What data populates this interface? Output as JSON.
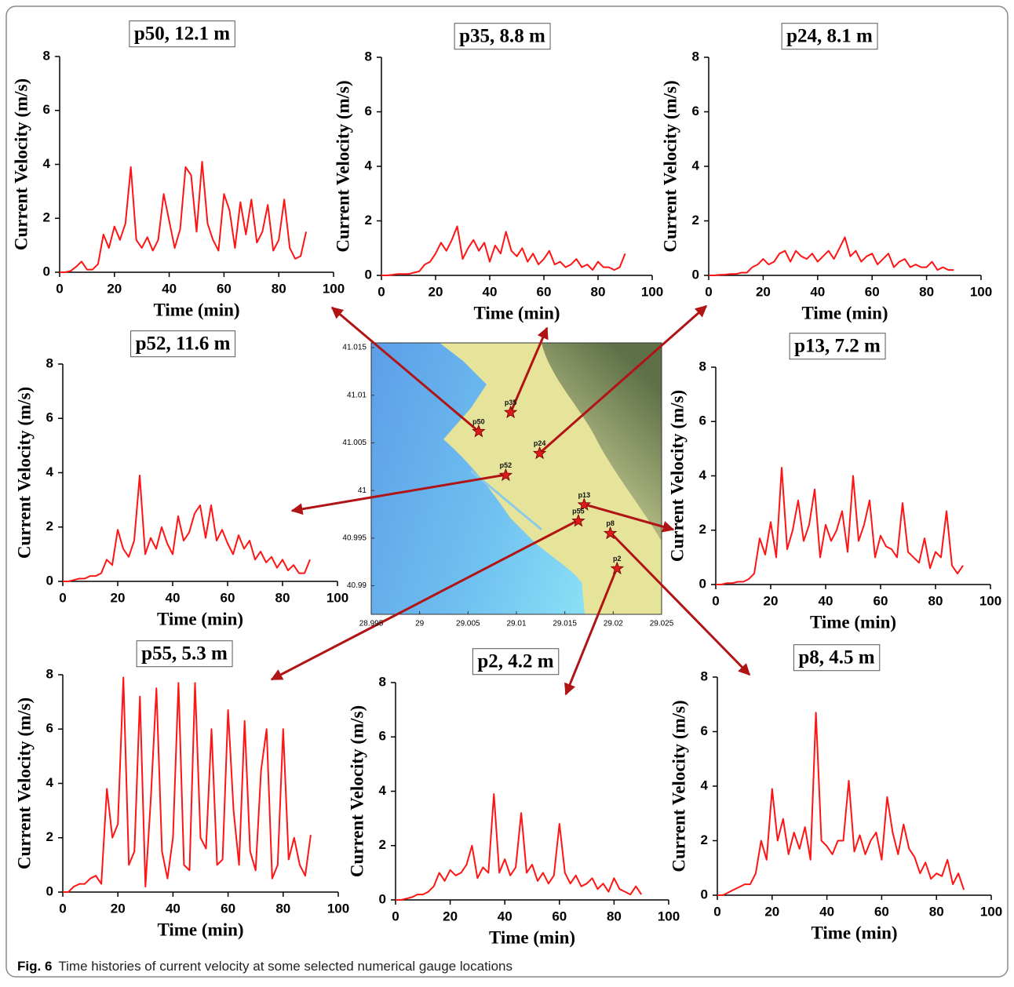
{
  "chart_data": [
    {
      "type": "line",
      "title": "p50, 12.1 m",
      "xlabel": "Time (min)",
      "ylabel": "Current Velocity (m/s)",
      "x": [
        0,
        2,
        4,
        6,
        8,
        10,
        12,
        14,
        16,
        18,
        20,
        22,
        24,
        26,
        28,
        30,
        32,
        34,
        36,
        38,
        40,
        42,
        44,
        46,
        48,
        50,
        52,
        54,
        56,
        58,
        60,
        62,
        64,
        66,
        68,
        70,
        72,
        74,
        76,
        78,
        80,
        82,
        84,
        86,
        88,
        90
      ],
      "series": [
        {
          "color": "#ff1414",
          "values": [
            0,
            0,
            0.05,
            0.2,
            0.4,
            0.1,
            0.1,
            0.3,
            1.4,
            0.9,
            1.7,
            1.2,
            1.8,
            3.9,
            1.2,
            0.9,
            1.3,
            0.8,
            1.2,
            2.9,
            1.9,
            0.9,
            1.6,
            3.9,
            3.6,
            1.5,
            4.1,
            1.8,
            1.2,
            0.8,
            2.9,
            2.3,
            0.9,
            2.6,
            1.4,
            2.7,
            1.1,
            1.5,
            2.5,
            0.8,
            1.2,
            2.7,
            0.9,
            0.5,
            0.6,
            1.5
          ]
        }
      ],
      "xlim": [
        0,
        100
      ],
      "ylim": [
        0,
        8
      ],
      "xticks": [
        0,
        20,
        40,
        60,
        80,
        100
      ],
      "yticks": [
        0,
        2,
        4,
        6,
        8
      ]
    },
    {
      "type": "line",
      "title": "p35, 8.8 m",
      "xlabel": "Time (min)",
      "ylabel": "Current Velocity (m/s)",
      "x": [
        0,
        2,
        4,
        6,
        8,
        10,
        12,
        14,
        16,
        18,
        20,
        22,
        24,
        26,
        28,
        30,
        32,
        34,
        36,
        38,
        40,
        42,
        44,
        46,
        48,
        50,
        52,
        54,
        56,
        58,
        60,
        62,
        64,
        66,
        68,
        70,
        72,
        74,
        76,
        78,
        80,
        82,
        84,
        86,
        88,
        90
      ],
      "series": [
        {
          "color": "#ff1414",
          "values": [
            0,
            0,
            0.02,
            0.05,
            0.05,
            0.05,
            0.1,
            0.15,
            0.4,
            0.5,
            0.8,
            1.2,
            0.9,
            1.3,
            1.8,
            0.6,
            1.0,
            1.3,
            0.9,
            1.2,
            0.5,
            1.1,
            0.8,
            1.6,
            0.9,
            0.7,
            1.0,
            0.5,
            0.8,
            0.4,
            0.6,
            0.9,
            0.4,
            0.5,
            0.3,
            0.4,
            0.6,
            0.3,
            0.4,
            0.2,
            0.5,
            0.3,
            0.3,
            0.2,
            0.3,
            0.8
          ]
        }
      ],
      "xlim": [
        0,
        100
      ],
      "ylim": [
        0,
        8
      ],
      "xticks": [
        0,
        20,
        40,
        60,
        80,
        100
      ],
      "yticks": [
        0,
        2,
        4,
        6,
        8
      ]
    },
    {
      "type": "line",
      "title": "p24, 8.1 m",
      "xlabel": "Time (min)",
      "ylabel": "Current Velocity (m/s)",
      "x": [
        0,
        2,
        4,
        6,
        8,
        10,
        12,
        14,
        16,
        18,
        20,
        22,
        24,
        26,
        28,
        30,
        32,
        34,
        36,
        38,
        40,
        42,
        44,
        46,
        48,
        50,
        52,
        54,
        56,
        58,
        60,
        62,
        64,
        66,
        68,
        70,
        72,
        74,
        76,
        78,
        80,
        82,
        84,
        86,
        88,
        90
      ],
      "series": [
        {
          "color": "#ff1414",
          "values": [
            0,
            0,
            0.02,
            0.03,
            0.05,
            0.05,
            0.1,
            0.1,
            0.3,
            0.4,
            0.6,
            0.4,
            0.5,
            0.8,
            0.9,
            0.5,
            0.9,
            0.7,
            0.6,
            0.8,
            0.5,
            0.7,
            0.9,
            0.6,
            1.0,
            1.4,
            0.7,
            0.9,
            0.5,
            0.7,
            0.8,
            0.4,
            0.6,
            0.8,
            0.3,
            0.5,
            0.6,
            0.3,
            0.4,
            0.3,
            0.3,
            0.5,
            0.2,
            0.3,
            0.2,
            0.2
          ]
        }
      ],
      "xlim": [
        0,
        100
      ],
      "ylim": [
        0,
        8
      ],
      "xticks": [
        0,
        20,
        40,
        60,
        80,
        100
      ],
      "yticks": [
        0,
        2,
        4,
        6,
        8
      ]
    },
    {
      "type": "line",
      "title": "p52, 11.6 m",
      "xlabel": "Time (min)",
      "ylabel": "Current Velocity (m/s)",
      "x": [
        0,
        2,
        4,
        6,
        8,
        10,
        12,
        14,
        16,
        18,
        20,
        22,
        24,
        26,
        28,
        30,
        32,
        34,
        36,
        38,
        40,
        42,
        44,
        46,
        48,
        50,
        52,
        54,
        56,
        58,
        60,
        62,
        64,
        66,
        68,
        70,
        72,
        74,
        76,
        78,
        80,
        82,
        84,
        86,
        88,
        90
      ],
      "series": [
        {
          "color": "#ff1414",
          "values": [
            0,
            0,
            0.05,
            0.1,
            0.1,
            0.2,
            0.2,
            0.3,
            0.8,
            0.6,
            1.9,
            1.2,
            0.9,
            1.5,
            3.9,
            1.0,
            1.6,
            1.2,
            2.0,
            1.4,
            1.0,
            2.4,
            1.5,
            1.8,
            2.5,
            2.8,
            1.6,
            2.8,
            1.5,
            1.9,
            1.4,
            1.0,
            1.7,
            1.2,
            1.5,
            0.8,
            1.1,
            0.7,
            0.9,
            0.5,
            0.8,
            0.4,
            0.6,
            0.3,
            0.3,
            0.8
          ]
        }
      ],
      "xlim": [
        0,
        100
      ],
      "ylim": [
        0,
        8
      ],
      "xticks": [
        0,
        20,
        40,
        60,
        80,
        100
      ],
      "yticks": [
        0,
        2,
        4,
        6,
        8
      ]
    },
    {
      "type": "line",
      "title": "p13, 7.2 m",
      "xlabel": "Time (min)",
      "ylabel": "Current Velocity (m/s)",
      "x": [
        0,
        2,
        4,
        6,
        8,
        10,
        12,
        14,
        16,
        18,
        20,
        22,
        24,
        26,
        28,
        30,
        32,
        34,
        36,
        38,
        40,
        42,
        44,
        46,
        48,
        50,
        52,
        54,
        56,
        58,
        60,
        62,
        64,
        66,
        68,
        70,
        72,
        74,
        76,
        78,
        80,
        82,
        84,
        86,
        88,
        90
      ],
      "series": [
        {
          "color": "#ff1414",
          "values": [
            0,
            0,
            0.05,
            0.05,
            0.1,
            0.1,
            0.2,
            0.4,
            1.7,
            1.1,
            2.3,
            1.0,
            4.3,
            1.3,
            2.0,
            3.1,
            1.6,
            2.2,
            3.5,
            1.0,
            2.2,
            1.6,
            2.0,
            2.7,
            1.2,
            4.0,
            1.6,
            2.2,
            3.1,
            1.0,
            1.8,
            1.4,
            1.3,
            1.0,
            3.0,
            1.2,
            1.0,
            0.8,
            1.7,
            0.6,
            1.2,
            1.0,
            2.7,
            0.7,
            0.4,
            0.7
          ]
        }
      ],
      "xlim": [
        0,
        100
      ],
      "ylim": [
        0,
        8
      ],
      "xticks": [
        0,
        20,
        40,
        60,
        80,
        100
      ],
      "yticks": [
        0,
        2,
        4,
        6,
        8
      ]
    },
    {
      "type": "line",
      "title": "p55, 5.3 m",
      "xlabel": "Time (min)",
      "ylabel": "Current Velocity (m/s)",
      "x": [
        0,
        2,
        4,
        6,
        8,
        10,
        12,
        14,
        16,
        18,
        20,
        22,
        24,
        26,
        28,
        30,
        32,
        34,
        36,
        38,
        40,
        42,
        44,
        46,
        48,
        50,
        52,
        54,
        56,
        58,
        60,
        62,
        64,
        66,
        68,
        70,
        72,
        74,
        76,
        78,
        80,
        82,
        84,
        86,
        88,
        90
      ],
      "series": [
        {
          "color": "#ff1414",
          "values": [
            0,
            0,
            0.2,
            0.3,
            0.3,
            0.5,
            0.6,
            0.3,
            3.8,
            2.0,
            2.5,
            7.9,
            1.0,
            1.5,
            7.2,
            0.2,
            3.5,
            7.5,
            1.5,
            0.5,
            2.0,
            7.7,
            1.0,
            0.8,
            7.7,
            2.0,
            1.6,
            6.0,
            1.0,
            1.2,
            6.7,
            3.0,
            1.0,
            6.3,
            1.5,
            0.8,
            4.5,
            6.0,
            0.5,
            1.0,
            6.0,
            1.2,
            2.0,
            1.0,
            0.6,
            2.1
          ]
        }
      ],
      "xlim": [
        0,
        100
      ],
      "ylim": [
        0,
        8
      ],
      "xticks": [
        0,
        20,
        40,
        60,
        80,
        100
      ],
      "yticks": [
        0,
        2,
        4,
        6,
        8
      ]
    },
    {
      "type": "line",
      "title": "p2, 4.2 m",
      "xlabel": "Time (min)",
      "ylabel": "Current Velocity (m/s)",
      "x": [
        0,
        2,
        4,
        6,
        8,
        10,
        12,
        14,
        16,
        18,
        20,
        22,
        24,
        26,
        28,
        30,
        32,
        34,
        36,
        38,
        40,
        42,
        44,
        46,
        48,
        50,
        52,
        54,
        56,
        58,
        60,
        62,
        64,
        66,
        68,
        70,
        72,
        74,
        76,
        78,
        80,
        82,
        84,
        86,
        88,
        90
      ],
      "series": [
        {
          "color": "#ff1414",
          "values": [
            0,
            0,
            0.05,
            0.1,
            0.2,
            0.2,
            0.3,
            0.5,
            1.0,
            0.7,
            1.1,
            0.9,
            1.0,
            1.3,
            2.0,
            0.8,
            1.2,
            1.0,
            3.9,
            1.0,
            1.5,
            0.9,
            1.2,
            3.2,
            1.0,
            1.3,
            0.7,
            1.0,
            0.6,
            0.9,
            2.8,
            1.0,
            0.6,
            0.9,
            0.5,
            0.6,
            0.8,
            0.4,
            0.6,
            0.3,
            0.8,
            0.4,
            0.3,
            0.2,
            0.5,
            0.2
          ]
        }
      ],
      "xlim": [
        0,
        100
      ],
      "ylim": [
        0,
        8
      ],
      "xticks": [
        0,
        20,
        40,
        60,
        80,
        100
      ],
      "yticks": [
        0,
        2,
        4,
        6,
        8
      ]
    },
    {
      "type": "line",
      "title": "p8, 4.5 m",
      "xlabel": "Time (min)",
      "ylabel": "Current Velocity (m/s)",
      "x": [
        0,
        2,
        4,
        6,
        8,
        10,
        12,
        14,
        16,
        18,
        20,
        22,
        24,
        26,
        28,
        30,
        32,
        34,
        36,
        38,
        40,
        42,
        44,
        46,
        48,
        50,
        52,
        54,
        56,
        58,
        60,
        62,
        64,
        66,
        68,
        70,
        72,
        74,
        76,
        78,
        80,
        82,
        84,
        86,
        88,
        90
      ],
      "series": [
        {
          "color": "#ff1414",
          "values": [
            0,
            0,
            0.1,
            0.2,
            0.3,
            0.4,
            0.4,
            0.8,
            2.0,
            1.3,
            3.9,
            2.0,
            2.8,
            1.5,
            2.3,
            1.7,
            2.5,
            1.3,
            6.7,
            2.0,
            1.8,
            1.5,
            2.0,
            2.0,
            4.2,
            1.6,
            2.2,
            1.5,
            2.0,
            2.3,
            1.3,
            3.6,
            2.3,
            1.5,
            2.6,
            1.7,
            1.4,
            0.8,
            1.2,
            0.6,
            0.8,
            0.7,
            1.3,
            0.4,
            0.8,
            0.2
          ]
        }
      ],
      "xlim": [
        0,
        100
      ],
      "ylim": [
        0,
        8
      ],
      "xticks": [
        0,
        20,
        40,
        60,
        80,
        100
      ],
      "yticks": [
        0,
        2,
        4,
        6,
        8
      ]
    },
    {
      "type": "map",
      "color": "#e01a1a",
      "xlim": [
        28.995,
        29.025
      ],
      "ylim": [
        40.987,
        41.0155
      ],
      "xticks": [
        28.995,
        29,
        29.005,
        29.01,
        29.015,
        29.02,
        29.025
      ],
      "yticks": [
        40.99,
        40.995,
        41,
        41.005,
        41.01,
        41.015
      ],
      "points": [
        {
          "label": "p50",
          "x": 29.0061,
          "y": 41.0062
        },
        {
          "label": "p35",
          "x": 29.0094,
          "y": 41.0082
        },
        {
          "label": "p24",
          "x": 29.0124,
          "y": 41.0039
        },
        {
          "label": "p52",
          "x": 29.0089,
          "y": 41.0016
        },
        {
          "label": "p13",
          "x": 29.017,
          "y": 40.9985
        },
        {
          "label": "p55",
          "x": 29.0164,
          "y": 40.9968
        },
        {
          "label": "p8",
          "x": 29.0197,
          "y": 40.9955
        },
        {
          "label": "p2",
          "x": 29.0204,
          "y": 40.9918
        }
      ]
    }
  ],
  "caption": {
    "label": "Fig. 6",
    "text": "Time histories of current velocity at some selected numerical gauge locations"
  }
}
